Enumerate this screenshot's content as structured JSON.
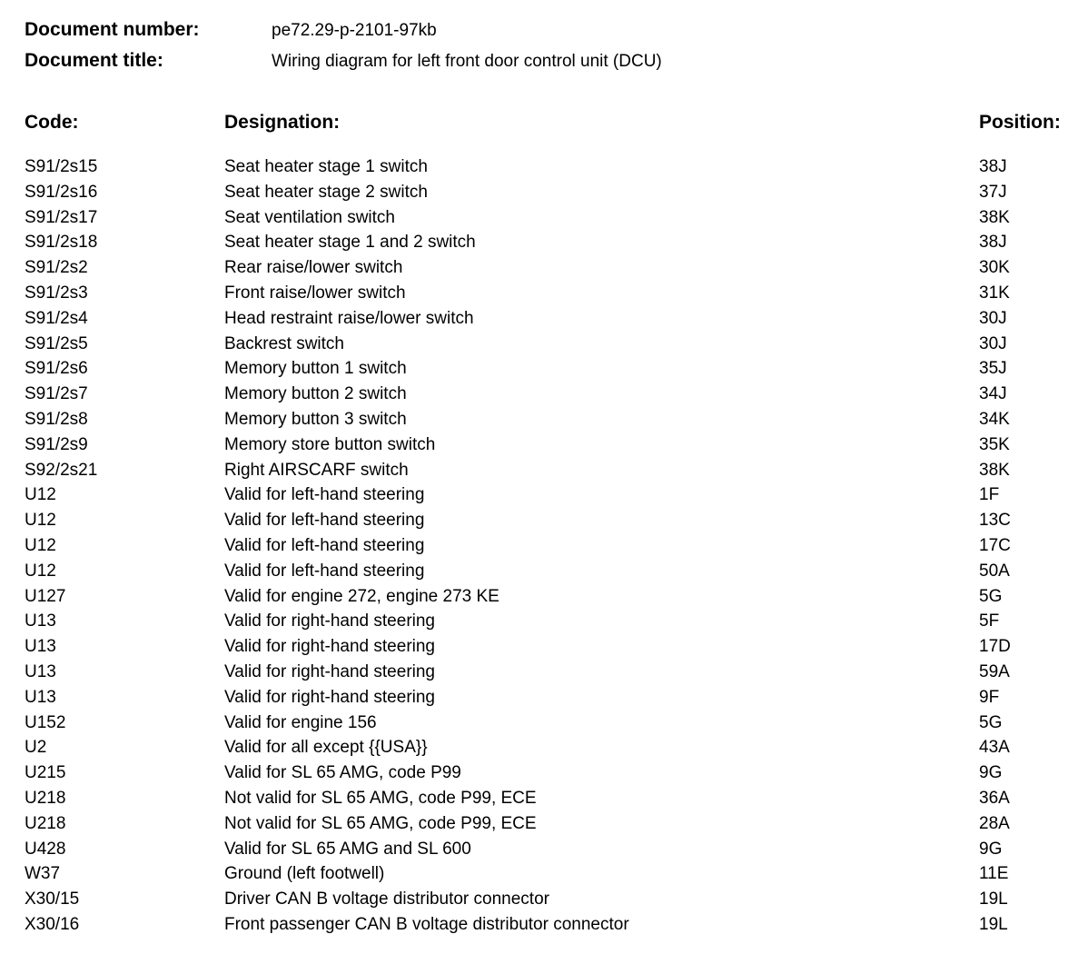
{
  "document": {
    "number_label": "Document number:",
    "number_value": "pe72.29-p-2101-97kb",
    "title_label": "Document title:",
    "title_value": "Wiring diagram for left front door control unit (DCU)"
  },
  "table": {
    "headers": {
      "code": "Code:",
      "designation": "Designation:",
      "position": "Position:"
    },
    "rows": [
      {
        "code": "S91/2s15",
        "designation": "Seat heater stage 1 switch",
        "position": "38J"
      },
      {
        "code": "S91/2s16",
        "designation": "Seat heater stage 2 switch",
        "position": "37J"
      },
      {
        "code": "S91/2s17",
        "designation": "Seat ventilation switch",
        "position": "38K"
      },
      {
        "code": "S91/2s18",
        "designation": "Seat heater stage 1 and 2 switch",
        "position": "38J"
      },
      {
        "code": "S91/2s2",
        "designation": "Rear raise/lower switch",
        "position": "30K"
      },
      {
        "code": "S91/2s3",
        "designation": "Front raise/lower switch",
        "position": "31K"
      },
      {
        "code": "S91/2s4",
        "designation": "Head restraint raise/lower switch",
        "position": "30J"
      },
      {
        "code": "S91/2s5",
        "designation": "Backrest switch",
        "position": "30J"
      },
      {
        "code": "S91/2s6",
        "designation": "Memory button 1 switch",
        "position": "35J"
      },
      {
        "code": "S91/2s7",
        "designation": "Memory button 2 switch",
        "position": "34J"
      },
      {
        "code": "S91/2s8",
        "designation": "Memory button 3 switch",
        "position": "34K"
      },
      {
        "code": "S91/2s9",
        "designation": "Memory store button switch",
        "position": "35K"
      },
      {
        "code": "S92/2s21",
        "designation": "Right AIRSCARF switch",
        "position": "38K"
      },
      {
        "code": "U12",
        "designation": "Valid for left-hand steering",
        "position": "1F"
      },
      {
        "code": "U12",
        "designation": "Valid for left-hand steering",
        "position": "13C"
      },
      {
        "code": "U12",
        "designation": "Valid for left-hand steering",
        "position": "17C"
      },
      {
        "code": "U12",
        "designation": "Valid for left-hand steering",
        "position": "50A"
      },
      {
        "code": "U127",
        "designation": "Valid for engine 272, engine 273 KE",
        "position": "5G"
      },
      {
        "code": "U13",
        "designation": "Valid for right-hand steering",
        "position": "5F"
      },
      {
        "code": "U13",
        "designation": "Valid for right-hand steering",
        "position": "17D"
      },
      {
        "code": "U13",
        "designation": "Valid for right-hand steering",
        "position": "59A"
      },
      {
        "code": "U13",
        "designation": "Valid for right-hand steering",
        "position": "9F"
      },
      {
        "code": "U152",
        "designation": "Valid for engine 156",
        "position": "5G"
      },
      {
        "code": "U2",
        "designation": "Valid for all except {{USA}}",
        "position": "43A"
      },
      {
        "code": "U215",
        "designation": "Valid for SL 65 AMG, code P99",
        "position": "9G"
      },
      {
        "code": "U218",
        "designation": "Not valid for SL 65 AMG, code P99, ECE",
        "position": "36A"
      },
      {
        "code": "U218",
        "designation": "Not valid for SL 65 AMG, code P99, ECE",
        "position": "28A"
      },
      {
        "code": "U428",
        "designation": "Valid for SL 65 AMG and SL 600",
        "position": "9G"
      },
      {
        "code": "W37",
        "designation": "Ground (left footwell)",
        "position": "11E"
      },
      {
        "code": "X30/15",
        "designation": "Driver CAN B voltage distributor connector",
        "position": "19L"
      },
      {
        "code": "X30/16",
        "designation": "Front passenger CAN B voltage distributor connector",
        "position": "19L"
      }
    ]
  }
}
